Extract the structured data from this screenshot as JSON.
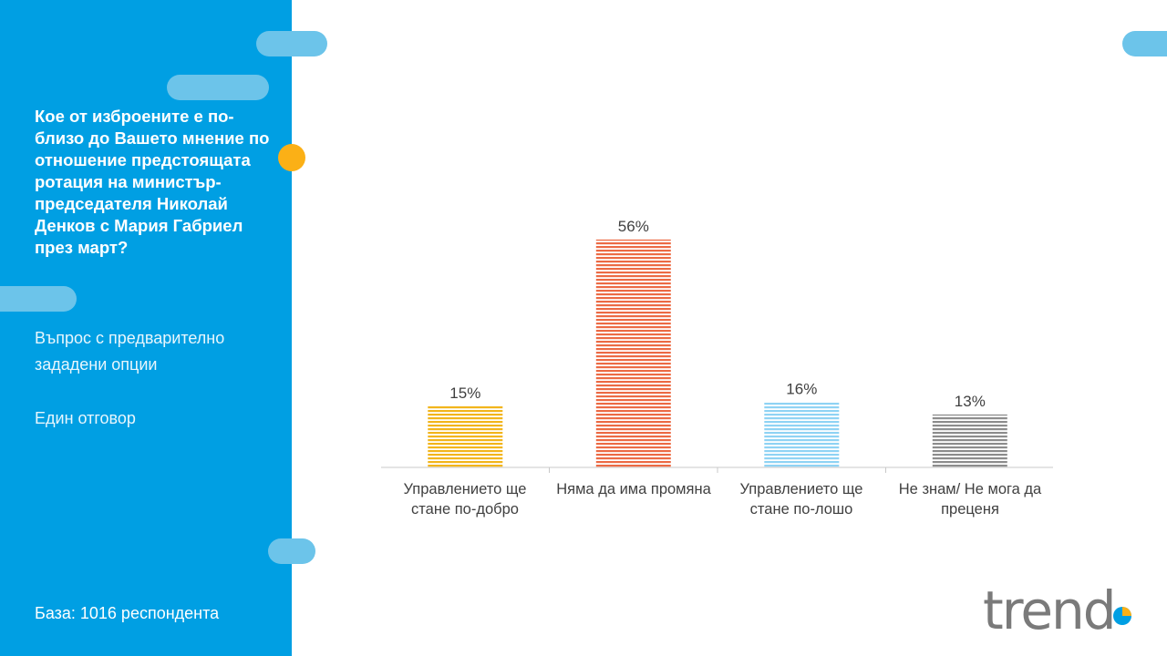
{
  "sidebar": {
    "question": "Кое от изброените е по-\nблизо до Вашето мнение по\nотношение  предстоящата\nротация на министър-\nпредседателя Николай\nДенков с Мария Габриел\nпрез март?",
    "note_type": "Въпрос с предварително\nзададени опции",
    "note_answer": "Един отговор",
    "base": "База:  1016 респондента"
  },
  "logo": {
    "text": "trend"
  },
  "colors": {
    "sidebar": "#009fe3",
    "pill": "#6cc4ea",
    "accent_dot": "#fbb016"
  },
  "chart_data": {
    "type": "bar",
    "categories": [
      "Управлението ще\nстане по-добро",
      "Няма да има промяна",
      "Управлението ще\nстане по-лошо",
      "Не знам/ Не мога да\nпреценя"
    ],
    "values": [
      15,
      56,
      16,
      13
    ],
    "data_labels": [
      "15%",
      "56%",
      "16%",
      "13%"
    ],
    "bar_colors": [
      "#f2b51b",
      "#ec6a44",
      "#8fd3f4",
      "#8c8c8c"
    ],
    "ylim": [
      0,
      60
    ],
    "grid": false,
    "legend": "none"
  }
}
